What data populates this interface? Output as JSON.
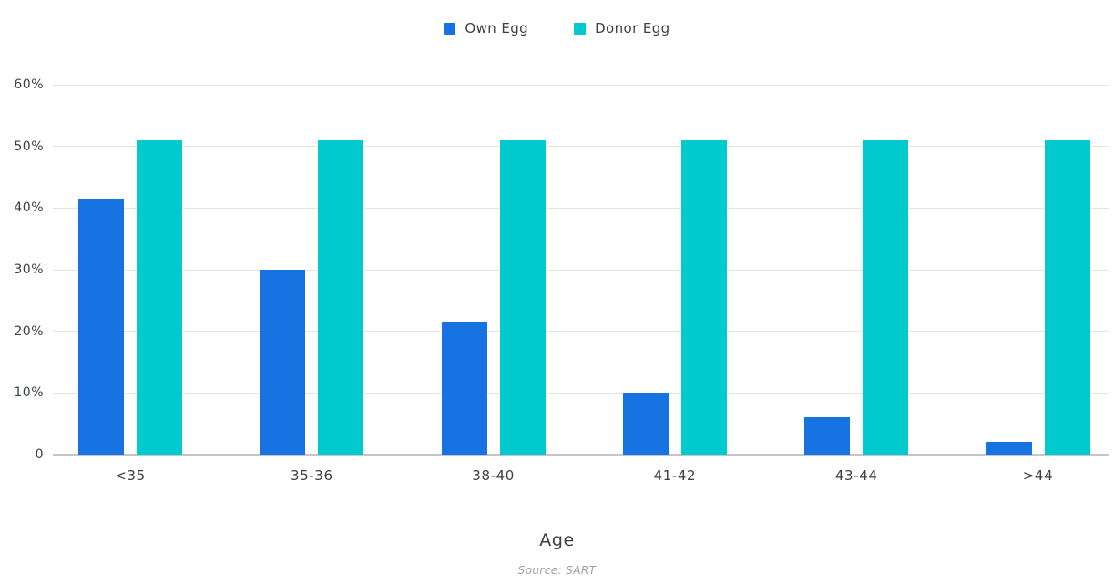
{
  "chart_data": {
    "type": "bar",
    "title": "",
    "xlabel": "Age",
    "ylabel": "",
    "source": "Source: SART",
    "categories": [
      "<35",
      "35-36",
      "38-40",
      "41-42",
      "43-44",
      ">44"
    ],
    "series": [
      {
        "name": "Own Egg",
        "color": "#1673E1",
        "values": [
          41.5,
          30,
          21.6,
          10,
          6,
          2
        ]
      },
      {
        "name": "Donor Egg",
        "color": "#00CACD",
        "values": [
          51,
          51,
          51,
          51,
          51,
          51
        ]
      }
    ],
    "ylim": [
      0,
      60
    ],
    "yticks": [
      {
        "value": 0,
        "label": "0"
      },
      {
        "value": 10,
        "label": "10%"
      },
      {
        "value": 20,
        "label": "20%"
      },
      {
        "value": 30,
        "label": "30%"
      },
      {
        "value": 40,
        "label": "40%"
      },
      {
        "value": 50,
        "label": "50%"
      },
      {
        "value": 60,
        "label": "60%"
      }
    ],
    "grid": true,
    "legend_position": "top"
  },
  "colors": {
    "background": "#FFFFFF",
    "gridline": "#E4E4E4",
    "axis_line": "#C6C6C6",
    "text": "#3C4043",
    "source_text": "#9AA0A6"
  }
}
